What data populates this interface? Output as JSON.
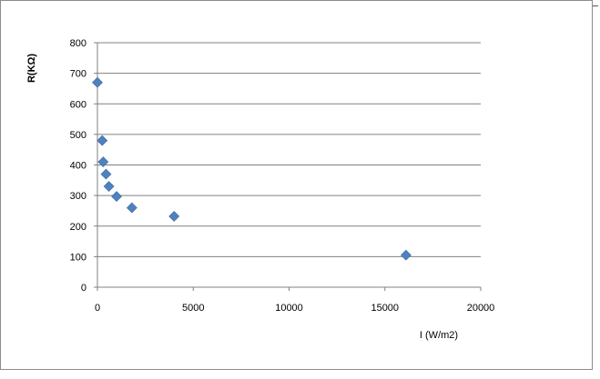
{
  "chart_data": {
    "type": "scatter",
    "title": "",
    "xlabel": "I (W/m2)",
    "ylabel": "R(KΩ)",
    "xlim": [
      0,
      20000
    ],
    "ylim": [
      0,
      800
    ],
    "x_ticks": [
      0,
      5000,
      10000,
      15000,
      20000
    ],
    "y_ticks": [
      0,
      100,
      200,
      300,
      400,
      500,
      600,
      700,
      800
    ],
    "grid": "horizontal",
    "legend": "none",
    "marker": "diamond",
    "marker_color": "#4f81bd",
    "points": [
      {
        "x": 0,
        "y": 670
      },
      {
        "x": 250,
        "y": 480
      },
      {
        "x": 300,
        "y": 410
      },
      {
        "x": 450,
        "y": 370
      },
      {
        "x": 600,
        "y": 330
      },
      {
        "x": 1000,
        "y": 297
      },
      {
        "x": 1800,
        "y": 260
      },
      {
        "x": 4000,
        "y": 232
      },
      {
        "x": 16100,
        "y": 105
      }
    ]
  }
}
